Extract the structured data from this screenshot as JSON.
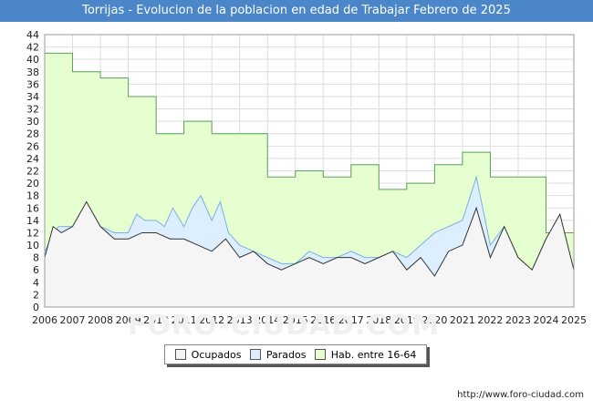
{
  "chart_data": {
    "type": "area",
    "title": "Torrijas - Evolucion de la poblacion en edad de Trabajar Febrero de 2025",
    "xlabel": "",
    "ylabel": "",
    "xlim": [
      2006,
      2025
    ],
    "ylim": [
      0,
      44
    ],
    "y_ticks": [
      0,
      2,
      4,
      6,
      8,
      10,
      12,
      14,
      16,
      18,
      20,
      22,
      24,
      26,
      28,
      30,
      32,
      34,
      36,
      38,
      40,
      42,
      44
    ],
    "x_ticks": [
      "2006",
      "2007",
      "2008",
      "2009",
      "2010",
      "2011",
      "2012",
      "2013",
      "2014",
      "2015",
      "2016",
      "2017",
      "2018",
      "2019",
      "2020",
      "2021",
      "2022",
      "2023",
      "2024",
      "2025"
    ],
    "grid": true,
    "series": [
      {
        "name": "Hab. entre 16-64",
        "color": "#e6ffd0",
        "stroke": "#59a159",
        "x": [
          2006,
          2007,
          2007,
          2008,
          2008,
          2009,
          2009,
          2010,
          2010,
          2011,
          2011,
          2012,
          2012,
          2013,
          2013,
          2014,
          2014,
          2015,
          2015,
          2016,
          2016,
          2017,
          2017,
          2018,
          2018,
          2019,
          2019,
          2020,
          2020,
          2021,
          2021,
          2022,
          2022,
          2023,
          2023,
          2024,
          2024,
          2025
        ],
        "values": [
          41,
          41,
          38,
          38,
          37,
          37,
          34,
          34,
          28,
          28,
          30,
          30,
          28,
          28,
          28,
          28,
          21,
          21,
          22,
          22,
          21,
          21,
          23,
          23,
          19,
          19,
          20,
          20,
          23,
          23,
          25,
          25,
          21,
          21,
          21,
          21,
          12,
          12
        ]
      },
      {
        "name": "Parados",
        "color": "#ddeeff",
        "stroke": "#7ab0e0",
        "x": [
          2006,
          2006.5,
          2007,
          2007.5,
          2008,
          2008.5,
          2009,
          2009.3,
          2009.6,
          2010,
          2010.3,
          2010.6,
          2011,
          2011.3,
          2011.6,
          2012,
          2012.3,
          2012.6,
          2013,
          2013.5,
          2014,
          2014.5,
          2015,
          2015.5,
          2016,
          2016.5,
          2017,
          2017.5,
          2018,
          2018.5,
          2019,
          2019.5,
          2020,
          2020.5,
          2021,
          2021.5,
          2022,
          2022.5,
          2023,
          2023.5,
          2024,
          2024.5,
          2025
        ],
        "values": [
          9,
          13,
          13,
          16,
          13,
          12,
          12,
          15,
          14,
          14,
          13,
          16,
          13,
          16,
          18,
          14,
          17,
          12,
          10,
          9,
          8,
          7,
          7,
          9,
          8,
          8,
          9,
          8,
          8,
          9,
          8,
          10,
          12,
          13,
          14,
          21,
          10,
          13,
          7,
          6,
          11,
          14,
          6
        ]
      },
      {
        "name": "Ocupados",
        "color": "#f5f5f5",
        "stroke": "#333333",
        "x": [
          2006,
          2006.3,
          2006.6,
          2007,
          2007.5,
          2008,
          2008.5,
          2009,
          2009.5,
          2010,
          2010.5,
          2011,
          2011.5,
          2012,
          2012.5,
          2013,
          2013.5,
          2014,
          2014.5,
          2015,
          2015.5,
          2016,
          2016.5,
          2017,
          2017.5,
          2018,
          2018.5,
          2019,
          2019.5,
          2020,
          2020.5,
          2021,
          2021.5,
          2022,
          2022.5,
          2023,
          2023.5,
          2024,
          2024.5,
          2025
        ],
        "values": [
          8,
          13,
          12,
          13,
          17,
          13,
          11,
          11,
          12,
          12,
          11,
          11,
          10,
          9,
          11,
          8,
          9,
          7,
          6,
          7,
          8,
          7,
          8,
          8,
          7,
          8,
          9,
          6,
          8,
          5,
          9,
          10,
          16,
          8,
          13,
          8,
          6,
          11,
          15,
          6
        ]
      }
    ],
    "legend": [
      "Ocupados",
      "Parados",
      "Hab. entre 16-64"
    ],
    "legend_position": "bottom-center",
    "source": "http://www.foro-ciudad.com",
    "watermark": "FORO-CIUDAD.COM"
  }
}
